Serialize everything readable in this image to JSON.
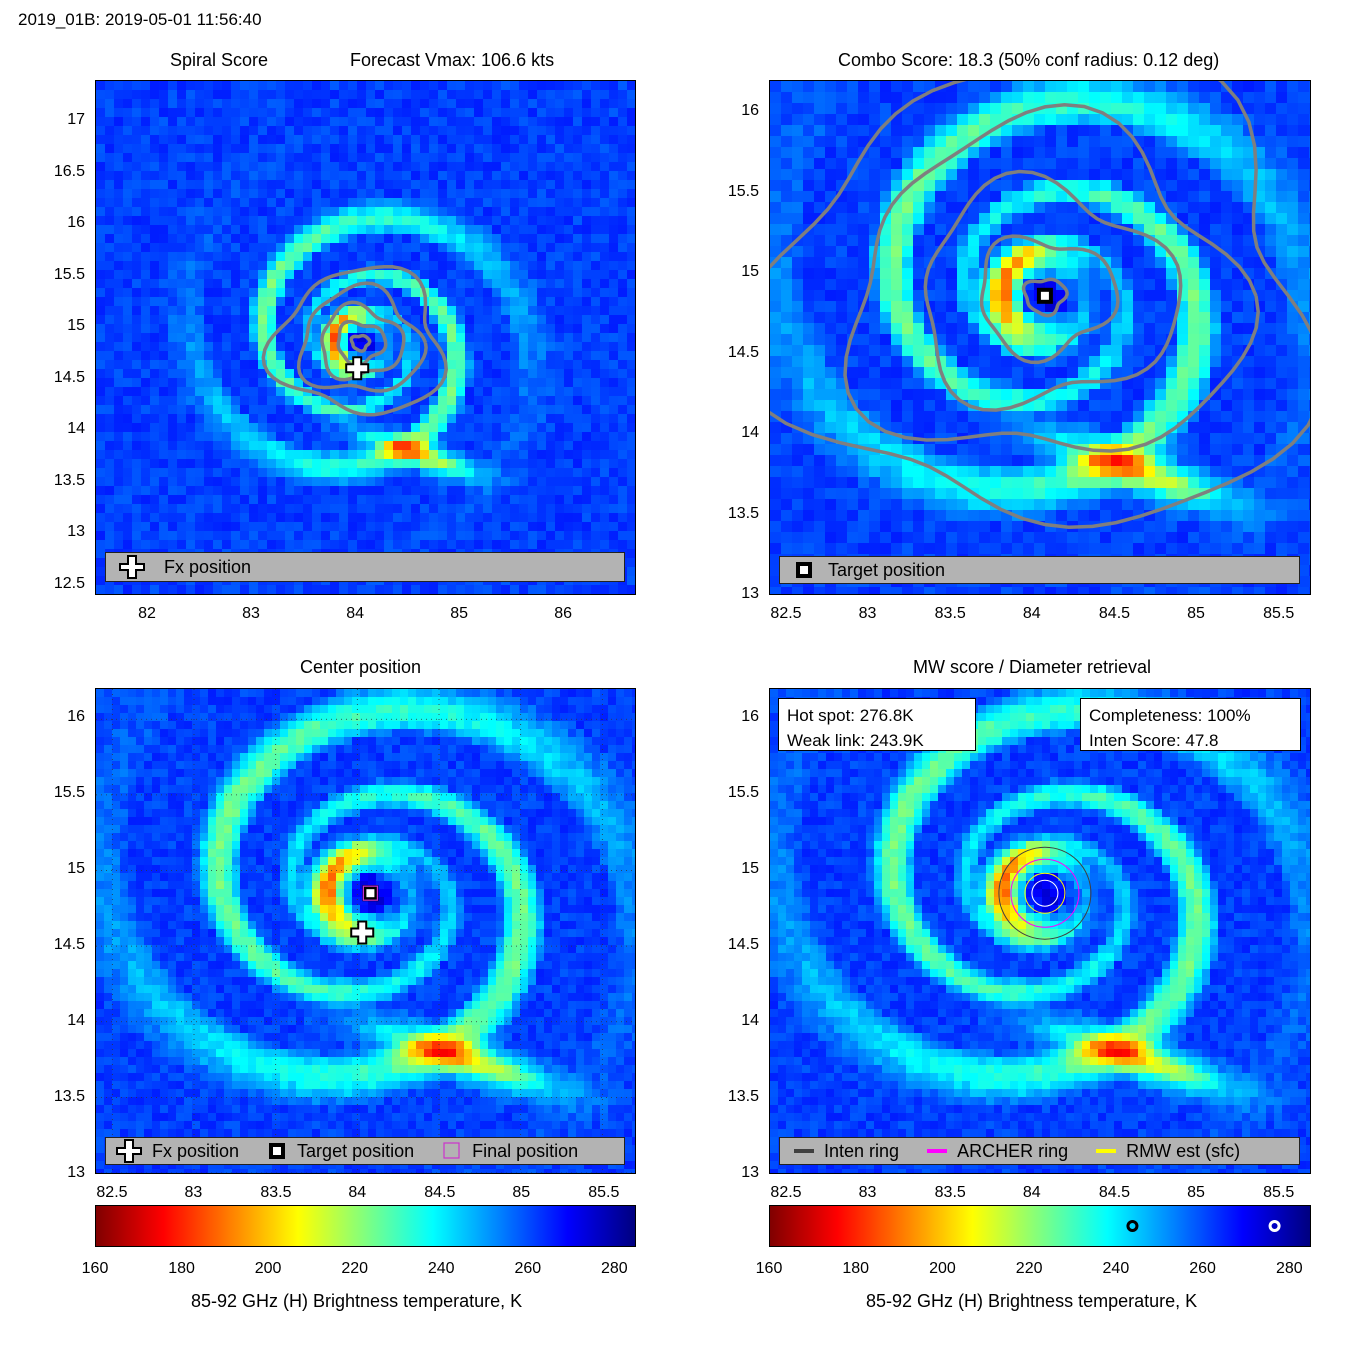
{
  "header": {
    "title": "2019_01B: 2019-05-01 11:56:40"
  },
  "colors": {
    "contour": "#7f7f7f",
    "legend_bg": "#b3b3b3",
    "inten_ring": "#404040",
    "archer_ring": "#ff00ff",
    "rmw_ring": "#ffff00",
    "final_marker": "#cc33cc"
  },
  "colormap": {
    "name": "jet",
    "min": 160,
    "max": 285,
    "stops": [
      "#800000",
      "#ff0000",
      "#ff8000",
      "#ffff00",
      "#80ff80",
      "#00ffff",
      "#0080ff",
      "#0000ff",
      "#000080"
    ]
  },
  "panels": {
    "spiral": {
      "title_left": "Spiral Score",
      "title_right": "Forecast Vmax: 106.6 kts",
      "legend": {
        "label": "Fx position",
        "icon": "plus-icon"
      }
    },
    "combo": {
      "title": "Combo Score: 18.3  (50% conf radius: 0.12 deg)",
      "legend": {
        "label": "Target position",
        "icon": "square-target-icon"
      }
    },
    "center": {
      "title": "Center position",
      "legend": {
        "fx": "Fx position",
        "target": "Target position",
        "final": "Final position"
      }
    },
    "mw": {
      "title": "MW score / Diameter retrieval",
      "hot_spot": "Hot spot: 276.8K",
      "weak_link": "Weak link: 243.9K",
      "completeness": "Completeness: 100%",
      "inten_score": "Inten Score: 47.8",
      "legend": {
        "inten": "Inten ring",
        "archer": "ARCHER ring",
        "rmw": "RMW est (sfc)"
      }
    }
  },
  "colorbar_label": "85-92 GHz (H) Brightness temperature, K",
  "chart_data": [
    {
      "type": "heatmap",
      "name": "Spiral Score",
      "title": "Spiral Score",
      "subtitle": "Forecast Vmax: 106.6 kts",
      "xlim": [
        81.5,
        86.7
      ],
      "ylim": [
        12.4,
        17.4
      ],
      "xticks": [
        82,
        83,
        84,
        85,
        86
      ],
      "yticks": [
        12.5,
        13,
        13.5,
        14,
        14.5,
        15,
        15.5,
        16,
        16.5,
        17
      ],
      "xtick_labels": [
        "82",
        "83",
        "84",
        "85",
        "86"
      ],
      "ytick_labels": [
        "12.5",
        "13",
        "13.5",
        "14",
        "14.5",
        "15",
        "15.5",
        "16",
        "16.5",
        "17"
      ],
      "fx_position": [
        84.02,
        14.6
      ],
      "legend": [
        "Fx position"
      ]
    },
    {
      "type": "heatmap",
      "name": "Combo Score",
      "title": "Combo Score: 18.3  (50% conf radius: 0.12 deg)",
      "xlim": [
        82.4,
        85.7
      ],
      "ylim": [
        13.0,
        16.2
      ],
      "xticks": [
        82.5,
        83,
        83.5,
        84,
        84.5,
        85,
        85.5
      ],
      "yticks": [
        13,
        13.5,
        14,
        14.5,
        15,
        15.5,
        16
      ],
      "xtick_labels": [
        "82.5",
        "83",
        "83.5",
        "84",
        "84.5",
        "85",
        "85.5"
      ],
      "ytick_labels": [
        "13",
        "13.5",
        "14",
        "14.5",
        "15",
        "15.5",
        "16"
      ],
      "target_position": [
        84.08,
        14.86
      ],
      "legend": [
        "Target position"
      ]
    },
    {
      "type": "heatmap",
      "name": "Center position",
      "title": "Center position",
      "xlim": [
        82.4,
        85.7
      ],
      "ylim": [
        13.0,
        16.2
      ],
      "xticks": [
        82.5,
        83,
        83.5,
        84,
        84.5,
        85,
        85.5
      ],
      "yticks": [
        13,
        13.5,
        14,
        14.5,
        15,
        15.5,
        16
      ],
      "xtick_labels": [
        "82.5",
        "83",
        "83.5",
        "84",
        "84.5",
        "85",
        "85.5"
      ],
      "ytick_labels": [
        "13",
        "13.5",
        "14",
        "14.5",
        "15",
        "15.5",
        "16"
      ],
      "fx_position": [
        84.03,
        14.59
      ],
      "target_position": [
        84.08,
        14.85
      ],
      "final_position": [
        84.08,
        14.85
      ],
      "legend": [
        "Fx position",
        "Target position",
        "Final position"
      ]
    },
    {
      "type": "heatmap",
      "name": "MW score / Diameter retrieval",
      "title": "MW score / Diameter retrieval",
      "xlim": [
        82.4,
        85.7
      ],
      "ylim": [
        13.0,
        16.2
      ],
      "xticks": [
        82.5,
        83,
        83.5,
        84,
        84.5,
        85,
        85.5
      ],
      "yticks": [
        13,
        13.5,
        14,
        14.5,
        15,
        15.5,
        16
      ],
      "xtick_labels": [
        "82.5",
        "83",
        "83.5",
        "84",
        "84.5",
        "85",
        "85.5"
      ],
      "ytick_labels": [
        "13",
        "13.5",
        "14",
        "14.5",
        "15",
        "15.5",
        "16"
      ],
      "center": [
        84.08,
        14.85
      ],
      "hot_spot_K": 276.8,
      "weak_link_K": 243.9,
      "completeness_pct": 100,
      "inten_score": 47.8,
      "legend": [
        "Inten ring",
        "ARCHER ring",
        "RMW est (sfc)"
      ]
    },
    {
      "type": "colorbar",
      "name": "colorbar-left",
      "xlabel": "85-92 GHz (H) Brightness temperature, K",
      "range": [
        160,
        285
      ],
      "ticks": [
        160,
        180,
        200,
        220,
        240,
        260,
        280
      ],
      "tick_labels": [
        "160",
        "180",
        "200",
        "220",
        "240",
        "260",
        "280"
      ]
    },
    {
      "type": "colorbar",
      "name": "colorbar-right",
      "xlabel": "85-92 GHz (H) Brightness temperature, K",
      "range": [
        160,
        285
      ],
      "ticks": [
        160,
        180,
        200,
        220,
        240,
        260,
        280
      ],
      "tick_labels": [
        "160",
        "180",
        "200",
        "220",
        "240",
        "260",
        "280"
      ],
      "markers_K": [
        243.9,
        276.8
      ]
    }
  ]
}
